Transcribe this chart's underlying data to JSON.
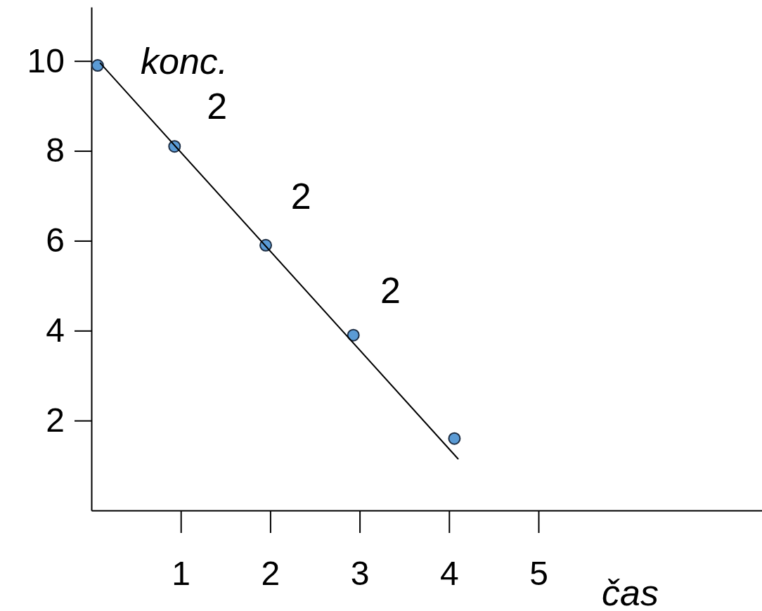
{
  "chart_data": {
    "type": "scatter",
    "xlabel": "čas",
    "ylabel": "konc.",
    "xlim": [
      0,
      7.5
    ],
    "ylim": [
      0,
      11.2
    ],
    "xticks": [
      1,
      2,
      3,
      4,
      5
    ],
    "yticks": [
      2,
      4,
      6,
      8,
      10
    ],
    "series": [
      {
        "color": "#5b9bd5",
        "marker": "circle",
        "x": [
          0.07,
          0.93,
          1.95,
          2.93,
          4.06
        ],
        "values": [
          9.9,
          8.1,
          5.9,
          3.9,
          1.6
        ]
      },
      {
        "type": "line",
        "color": "#000000",
        "line_style": "solid",
        "x": [
          0.1,
          4.1
        ],
        "values": [
          9.95,
          1.15
        ]
      }
    ],
    "annotations": [
      "2",
      "2",
      "2"
    ]
  }
}
